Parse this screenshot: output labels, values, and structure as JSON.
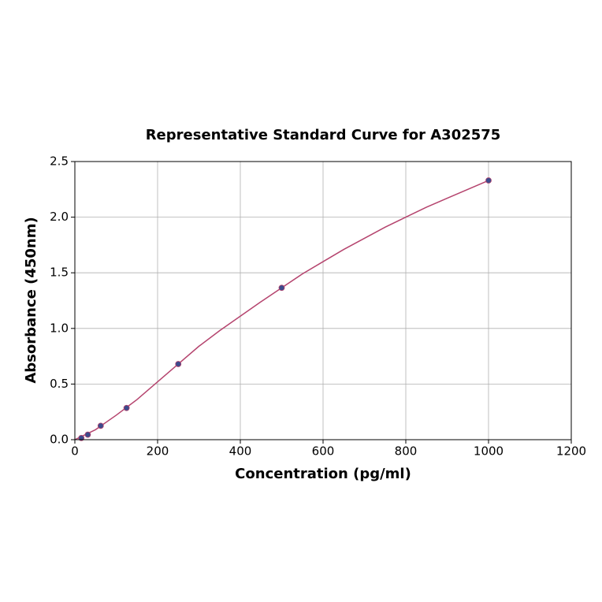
{
  "chart_data": {
    "type": "scatter",
    "title": "Representative Standard Curve for A302575",
    "xlabel": "Concentration (pg/ml)",
    "ylabel": "Absorbance (450nm)",
    "xlim": [
      0,
      1200
    ],
    "xticks": [
      0,
      200,
      400,
      600,
      800,
      1000,
      1200
    ],
    "ylim": [
      0,
      2.5
    ],
    "yticks": [
      {
        "value": 0,
        "label": "0.0"
      },
      0.5,
      {
        "value": 1,
        "label": "1.0"
      },
      1.5,
      {
        "value": 2,
        "label": "2.0"
      },
      2.5
    ],
    "grid": true,
    "series": [
      {
        "style": "line",
        "color": "#b5446e",
        "x": [
          0,
          50,
          100,
          150,
          200,
          250,
          300,
          350,
          400,
          450,
          500,
          550,
          600,
          650,
          700,
          750,
          800,
          850,
          900,
          950,
          1000
        ],
        "values": [
          0,
          0.09,
          0.22,
          0.36,
          0.52,
          0.68,
          0.84,
          0.98,
          1.11,
          1.24,
          1.365,
          1.49,
          1.6,
          1.71,
          1.81,
          1.91,
          2.0,
          2.09,
          2.17,
          2.25,
          2.33
        ]
      },
      {
        "style": "marker",
        "color": "#3d4b8c",
        "x": [
          15.6,
          31.25,
          62.5,
          125,
          250,
          500,
          1000
        ],
        "values": [
          0.015,
          0.045,
          0.125,
          0.285,
          0.68,
          1.365,
          2.33
        ]
      }
    ]
  }
}
